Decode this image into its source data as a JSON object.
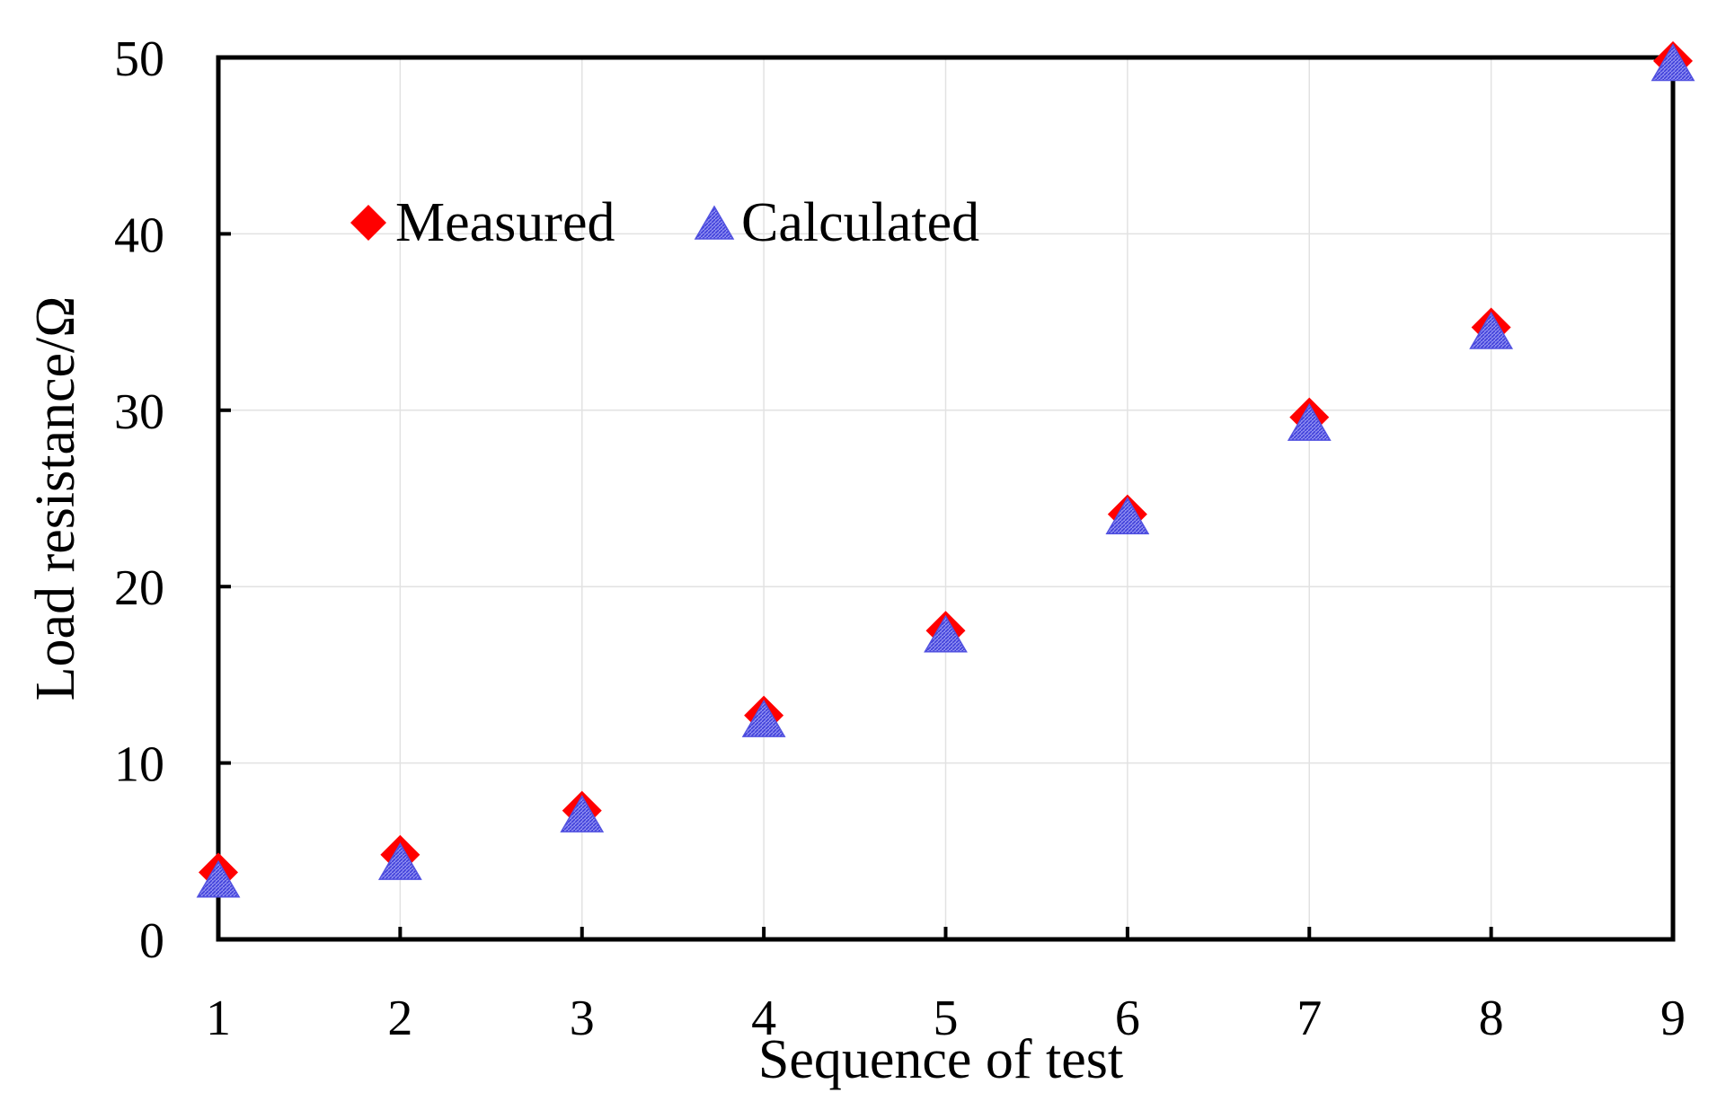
{
  "chart_data": {
    "type": "scatter",
    "title": "",
    "xlabel": "Sequence of test",
    "ylabel": "Load resistance/Ω",
    "xlim": [
      1,
      9
    ],
    "ylim": [
      0,
      50
    ],
    "x_ticks": [
      1,
      2,
      3,
      4,
      5,
      6,
      7,
      8,
      9
    ],
    "y_ticks": [
      0,
      10,
      20,
      30,
      40,
      50
    ],
    "grid": true,
    "legend_position": "top-left",
    "series": [
      {
        "name": "Measured",
        "marker": "diamond",
        "color": "#ff0000",
        "x": [
          1,
          2,
          3,
          4,
          5,
          6,
          7,
          8,
          9
        ],
        "values": [
          3.8,
          4.8,
          7.3,
          12.7,
          17.5,
          24.1,
          29.6,
          34.7,
          49.8
        ]
      },
      {
        "name": "Calculated",
        "marker": "triangle",
        "color": "#6a6ae8",
        "x": [
          1,
          2,
          3,
          4,
          5,
          6,
          7,
          8,
          9
        ],
        "values": [
          3.3,
          4.3,
          7.0,
          12.4,
          17.2,
          23.9,
          29.2,
          34.4,
          49.6
        ]
      }
    ]
  }
}
